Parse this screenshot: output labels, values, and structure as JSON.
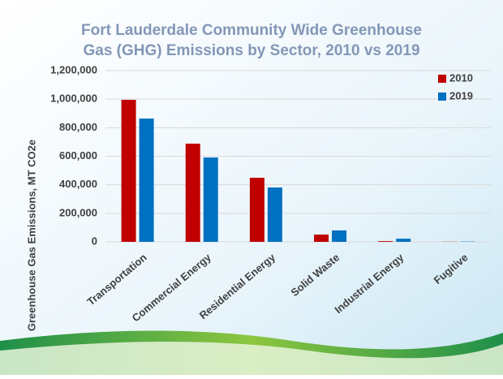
{
  "chart_data": {
    "type": "bar",
    "title": [
      "Fort Lauderdale Community Wide Greenhouse",
      "Gas (GHG) Emissions by Sector, 2010 vs 2019"
    ],
    "y_label": "Greenhouse Gas Emissions, MT CO2e",
    "categories": [
      "Transportation",
      "Commercial Energy",
      "Residential Energy",
      "Solid Waste",
      "Industrial Energy",
      "Fugitive"
    ],
    "series": [
      {
        "name": "2010",
        "color": "#c00000",
        "values": [
          995000,
          688000,
          449000,
          51000,
          5000,
          1000
        ]
      },
      {
        "name": "2019",
        "color": "#0070c0",
        "values": [
          864000,
          591000,
          381000,
          80000,
          22000,
          2000
        ]
      }
    ],
    "ylim": [
      0,
      1200000
    ],
    "yticks": [
      0,
      {
        "value": 200000,
        "label": "200,000"
      },
      {
        "value": 400000,
        "label": "400,000"
      },
      {
        "value": 600000,
        "label": "600,000"
      },
      {
        "value": 800000,
        "label": "800,000"
      },
      {
        "value": 1000000,
        "label": "1,000,000"
      },
      {
        "value": 1200000,
        "label": "1,200,000"
      }
    ],
    "grid": true,
    "legend": "top-right"
  }
}
